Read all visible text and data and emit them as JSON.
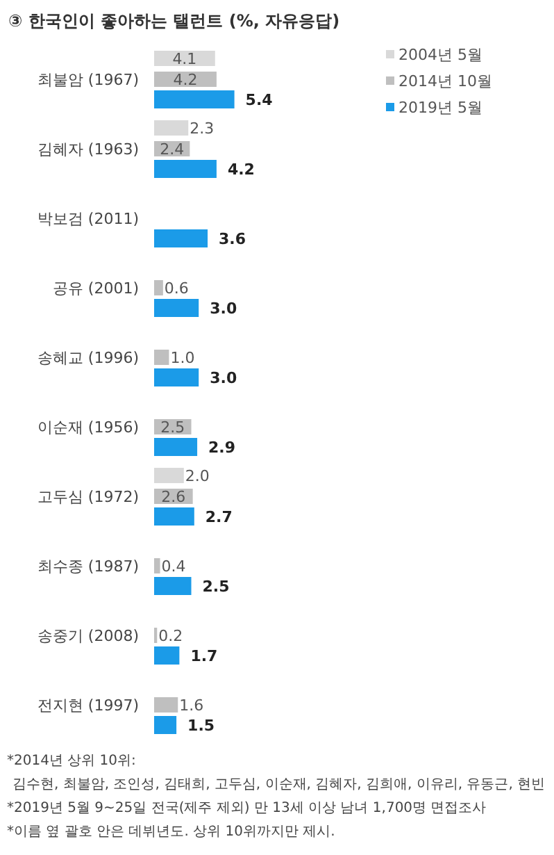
{
  "chart_data": {
    "type": "bar",
    "orientation": "horizontal",
    "title": "③ 한국인이 좋아하는 탤런트 (%, 자유응답)",
    "categories": [
      "최불암 (1967)",
      "김혜자 (1963)",
      "박보검 (2011)",
      "공유 (2001)",
      "송혜교 (1996)",
      "이순재 (1956)",
      "고두심 (1972)",
      "최수종 (1987)",
      "송중기 (2008)",
      "전지현 (1997)"
    ],
    "series": [
      {
        "name": "2004년 5월",
        "color": "#d9d9d9",
        "values": [
          4.1,
          2.3,
          null,
          null,
          null,
          null,
          2.0,
          null,
          null,
          null
        ],
        "value_labels": [
          "4.1",
          "2.3",
          null,
          null,
          null,
          null,
          "2.0",
          null,
          null,
          null
        ]
      },
      {
        "name": "2014년 10월",
        "color": "#bfbfbf",
        "values": [
          4.2,
          2.4,
          null,
          0.6,
          1.0,
          2.5,
          2.6,
          0.4,
          0.2,
          1.6
        ],
        "value_labels": [
          "4.2",
          "2.4",
          null,
          "0.6",
          "1.0",
          "2.5",
          "2.6",
          "0.4",
          "0.2",
          "1.6"
        ]
      },
      {
        "name": "2019년 5월",
        "color": "#1b9be8",
        "values": [
          5.4,
          4.2,
          3.6,
          3.0,
          3.0,
          2.9,
          2.7,
          2.5,
          1.7,
          1.5
        ],
        "value_labels": [
          "5.4",
          "4.2",
          "3.6",
          "3.0",
          "3.0",
          "2.9",
          "2.7",
          "2.5",
          "1.7",
          "1.5"
        ]
      }
    ],
    "legend": "top right",
    "annotations": [
      "*2014년 상위 10위:",
      "김수현, 최불암, 조인성, 김태희, 고두심, 이순재, 김혜자, 김희애, 이유리, 유동근, 현빈",
      "*2019년 5월 9~25일 전국(제주 제외) 만 13세 이상 남녀 1,700명 면접조사",
      "*이름 옆 괄호 안은 데뷔년도. 상위 10위까지만 제시."
    ]
  }
}
